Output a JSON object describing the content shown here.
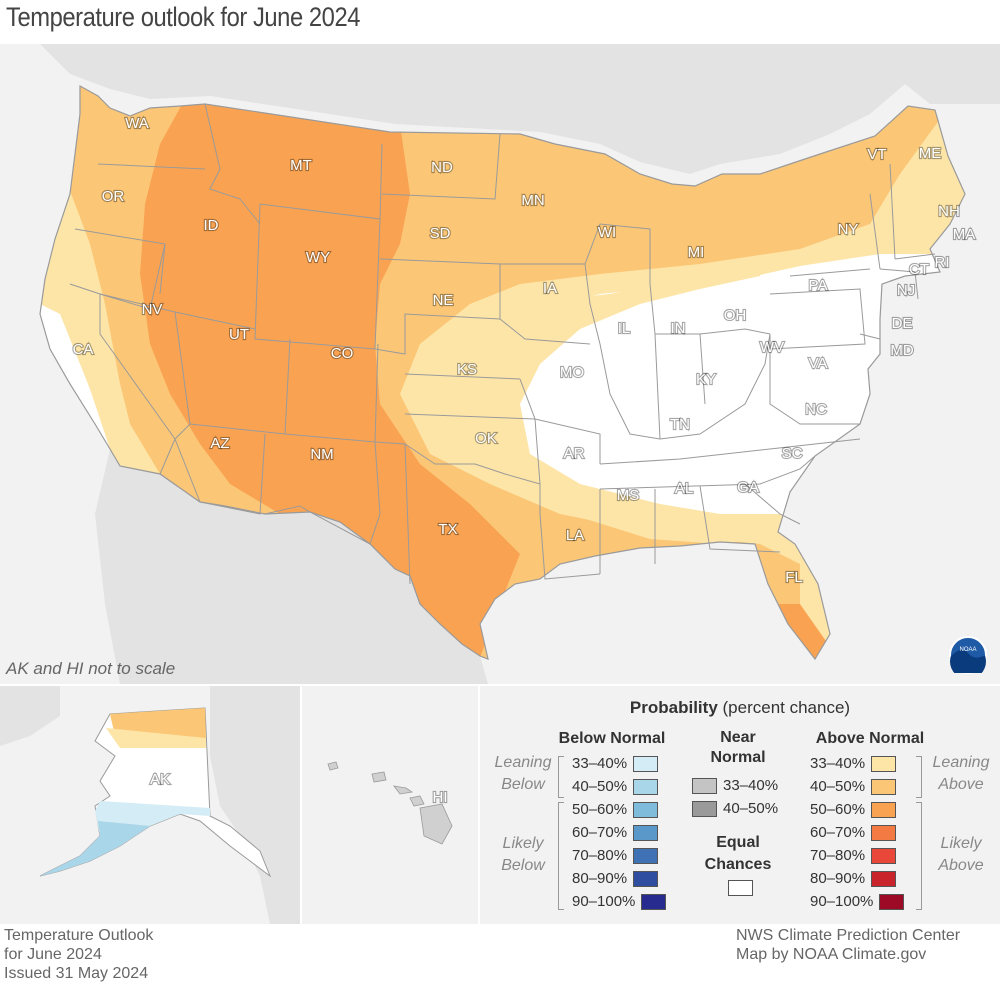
{
  "title": "Temperature outlook for June 2024",
  "scale_note": "AK and HI not to scale",
  "legend": {
    "title_bold": "Probability",
    "title_rest": " (percent chance)",
    "below_header": "Below Normal",
    "near_header_line1": "Near",
    "near_header_line2": "Normal",
    "above_header": "Above Normal",
    "below": [
      {
        "range": "33–40%",
        "color": "#d4ecf5"
      },
      {
        "range": "40–50%",
        "color": "#a9d6e8"
      },
      {
        "range": "50–60%",
        "color": "#7fbcdb"
      },
      {
        "range": "60–70%",
        "color": "#5a98c9"
      },
      {
        "range": "70–80%",
        "color": "#3f72b5"
      },
      {
        "range": "80–90%",
        "color": "#2f4ea0"
      },
      {
        "range": "90–100%",
        "color": "#272a8e"
      }
    ],
    "near": [
      {
        "range": "33–40%",
        "color": "#c4c4c4"
      },
      {
        "range": "40–50%",
        "color": "#9a9a9a"
      }
    ],
    "equal_line1": "Equal",
    "equal_line2": "Chances",
    "equal_color": "#ffffff",
    "above": [
      {
        "range": "33–40%",
        "color": "#fde5a8"
      },
      {
        "range": "40–50%",
        "color": "#fbc777"
      },
      {
        "range": "50–60%",
        "color": "#f9a352"
      },
      {
        "range": "60–70%",
        "color": "#f47a44"
      },
      {
        "range": "70–80%",
        "color": "#e8473a"
      },
      {
        "range": "80–90%",
        "color": "#c9232b"
      },
      {
        "range": "90–100%",
        "color": "#9d0a26"
      }
    ],
    "leaning_below": [
      "Leaning",
      "Below"
    ],
    "likely_below": [
      "Likely",
      "Below"
    ],
    "leaning_above": [
      "Leaning",
      "Above"
    ],
    "likely_above": [
      "Likely",
      "Above"
    ]
  },
  "footer_left": [
    "Temperature Outlook",
    "for June 2024",
    "Issued 31 May 2024"
  ],
  "footer_right": [
    "NWS Climate Prediction Center",
    "Map by NOAA Climate.gov"
  ],
  "map_colors": {
    "water": "#f2f2f2",
    "land_other": "#e3e3e3",
    "state_line": "#9a9a9a",
    "equal": "#ffffff",
    "above_33_40": "#fde5a8",
    "above_40_50": "#fbc777",
    "above_50_60": "#f9a352",
    "below_33_40": "#d4ecf5",
    "below_40_50": "#a9d6e8"
  },
  "states": [
    {
      "abbr": "WA"
    },
    {
      "abbr": "OR"
    },
    {
      "abbr": "CA"
    },
    {
      "abbr": "ID"
    },
    {
      "abbr": "NV"
    },
    {
      "abbr": "MT"
    },
    {
      "abbr": "WY"
    },
    {
      "abbr": "UT"
    },
    {
      "abbr": "AZ"
    },
    {
      "abbr": "CO"
    },
    {
      "abbr": "NM"
    },
    {
      "abbr": "ND"
    },
    {
      "abbr": "SD"
    },
    {
      "abbr": "NE"
    },
    {
      "abbr": "KS"
    },
    {
      "abbr": "OK"
    },
    {
      "abbr": "TX"
    },
    {
      "abbr": "MN"
    },
    {
      "abbr": "IA"
    },
    {
      "abbr": "MO"
    },
    {
      "abbr": "AR"
    },
    {
      "abbr": "LA"
    },
    {
      "abbr": "WI"
    },
    {
      "abbr": "IL"
    },
    {
      "abbr": "MI"
    },
    {
      "abbr": "IN"
    },
    {
      "abbr": "OH"
    },
    {
      "abbr": "KY"
    },
    {
      "abbr": "TN"
    },
    {
      "abbr": "MS"
    },
    {
      "abbr": "AL"
    },
    {
      "abbr": "GA"
    },
    {
      "abbr": "FL"
    },
    {
      "abbr": "SC"
    },
    {
      "abbr": "NC"
    },
    {
      "abbr": "VA"
    },
    {
      "abbr": "WV"
    },
    {
      "abbr": "PA"
    },
    {
      "abbr": "NY"
    },
    {
      "abbr": "VT"
    },
    {
      "abbr": "NH"
    },
    {
      "abbr": "ME"
    },
    {
      "abbr": "MA"
    },
    {
      "abbr": "CT"
    },
    {
      "abbr": "RI"
    },
    {
      "abbr": "NJ"
    },
    {
      "abbr": "DE"
    },
    {
      "abbr": "MD"
    },
    {
      "abbr": "AK"
    },
    {
      "abbr": "HI"
    }
  ],
  "noaa_logo": "NOAA"
}
